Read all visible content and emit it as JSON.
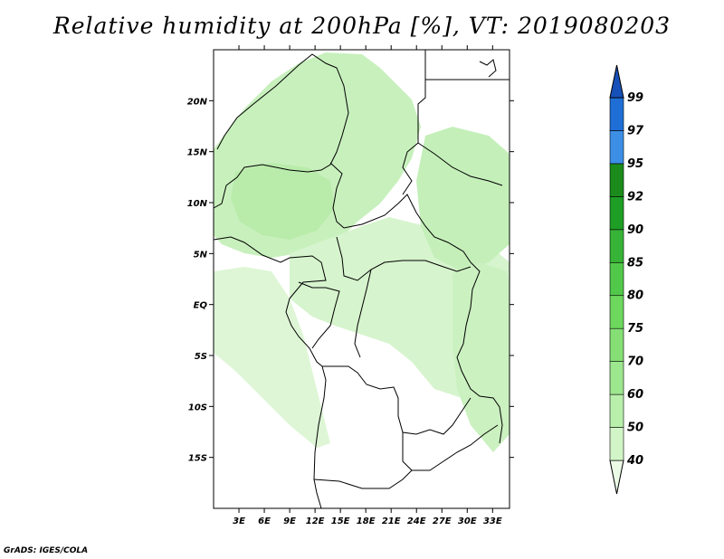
{
  "title": "Relative humidity at 200hPa [%], VT: 2019080203",
  "map": {
    "lat_labels": [
      "20N",
      "15N",
      "10N",
      "5N",
      "EQ",
      "5S",
      "10S",
      "15S"
    ],
    "lat_values": [
      20,
      15,
      10,
      5,
      0,
      -5,
      -10,
      -15
    ],
    "lon_labels": [
      "3E",
      "6E",
      "9E",
      "12E",
      "15E",
      "18E",
      "21E",
      "24E",
      "27E",
      "30E",
      "33E"
    ],
    "lon_values": [
      3,
      6,
      9,
      12,
      15,
      18,
      21,
      24,
      27,
      30,
      33
    ],
    "extent": {
      "lon_min": 0,
      "lon_max": 35,
      "lat_min": -20,
      "lat_max": 25
    }
  },
  "colorbar": {
    "levels": [
      "40",
      "50",
      "60",
      "70",
      "75",
      "80",
      "85",
      "90",
      "92",
      "95",
      "97",
      "99"
    ],
    "colors": [
      "#ebfbe6",
      "#d2f5c8",
      "#b8efab",
      "#9de78e",
      "#85df75",
      "#6dd75e",
      "#52c84a",
      "#37b337",
      "#1f9e25",
      "#1b8b1b",
      "#3d8fe6",
      "#1f6ed6",
      "#1750b8"
    ]
  },
  "credit": "GrADS: IGES/COLA"
}
